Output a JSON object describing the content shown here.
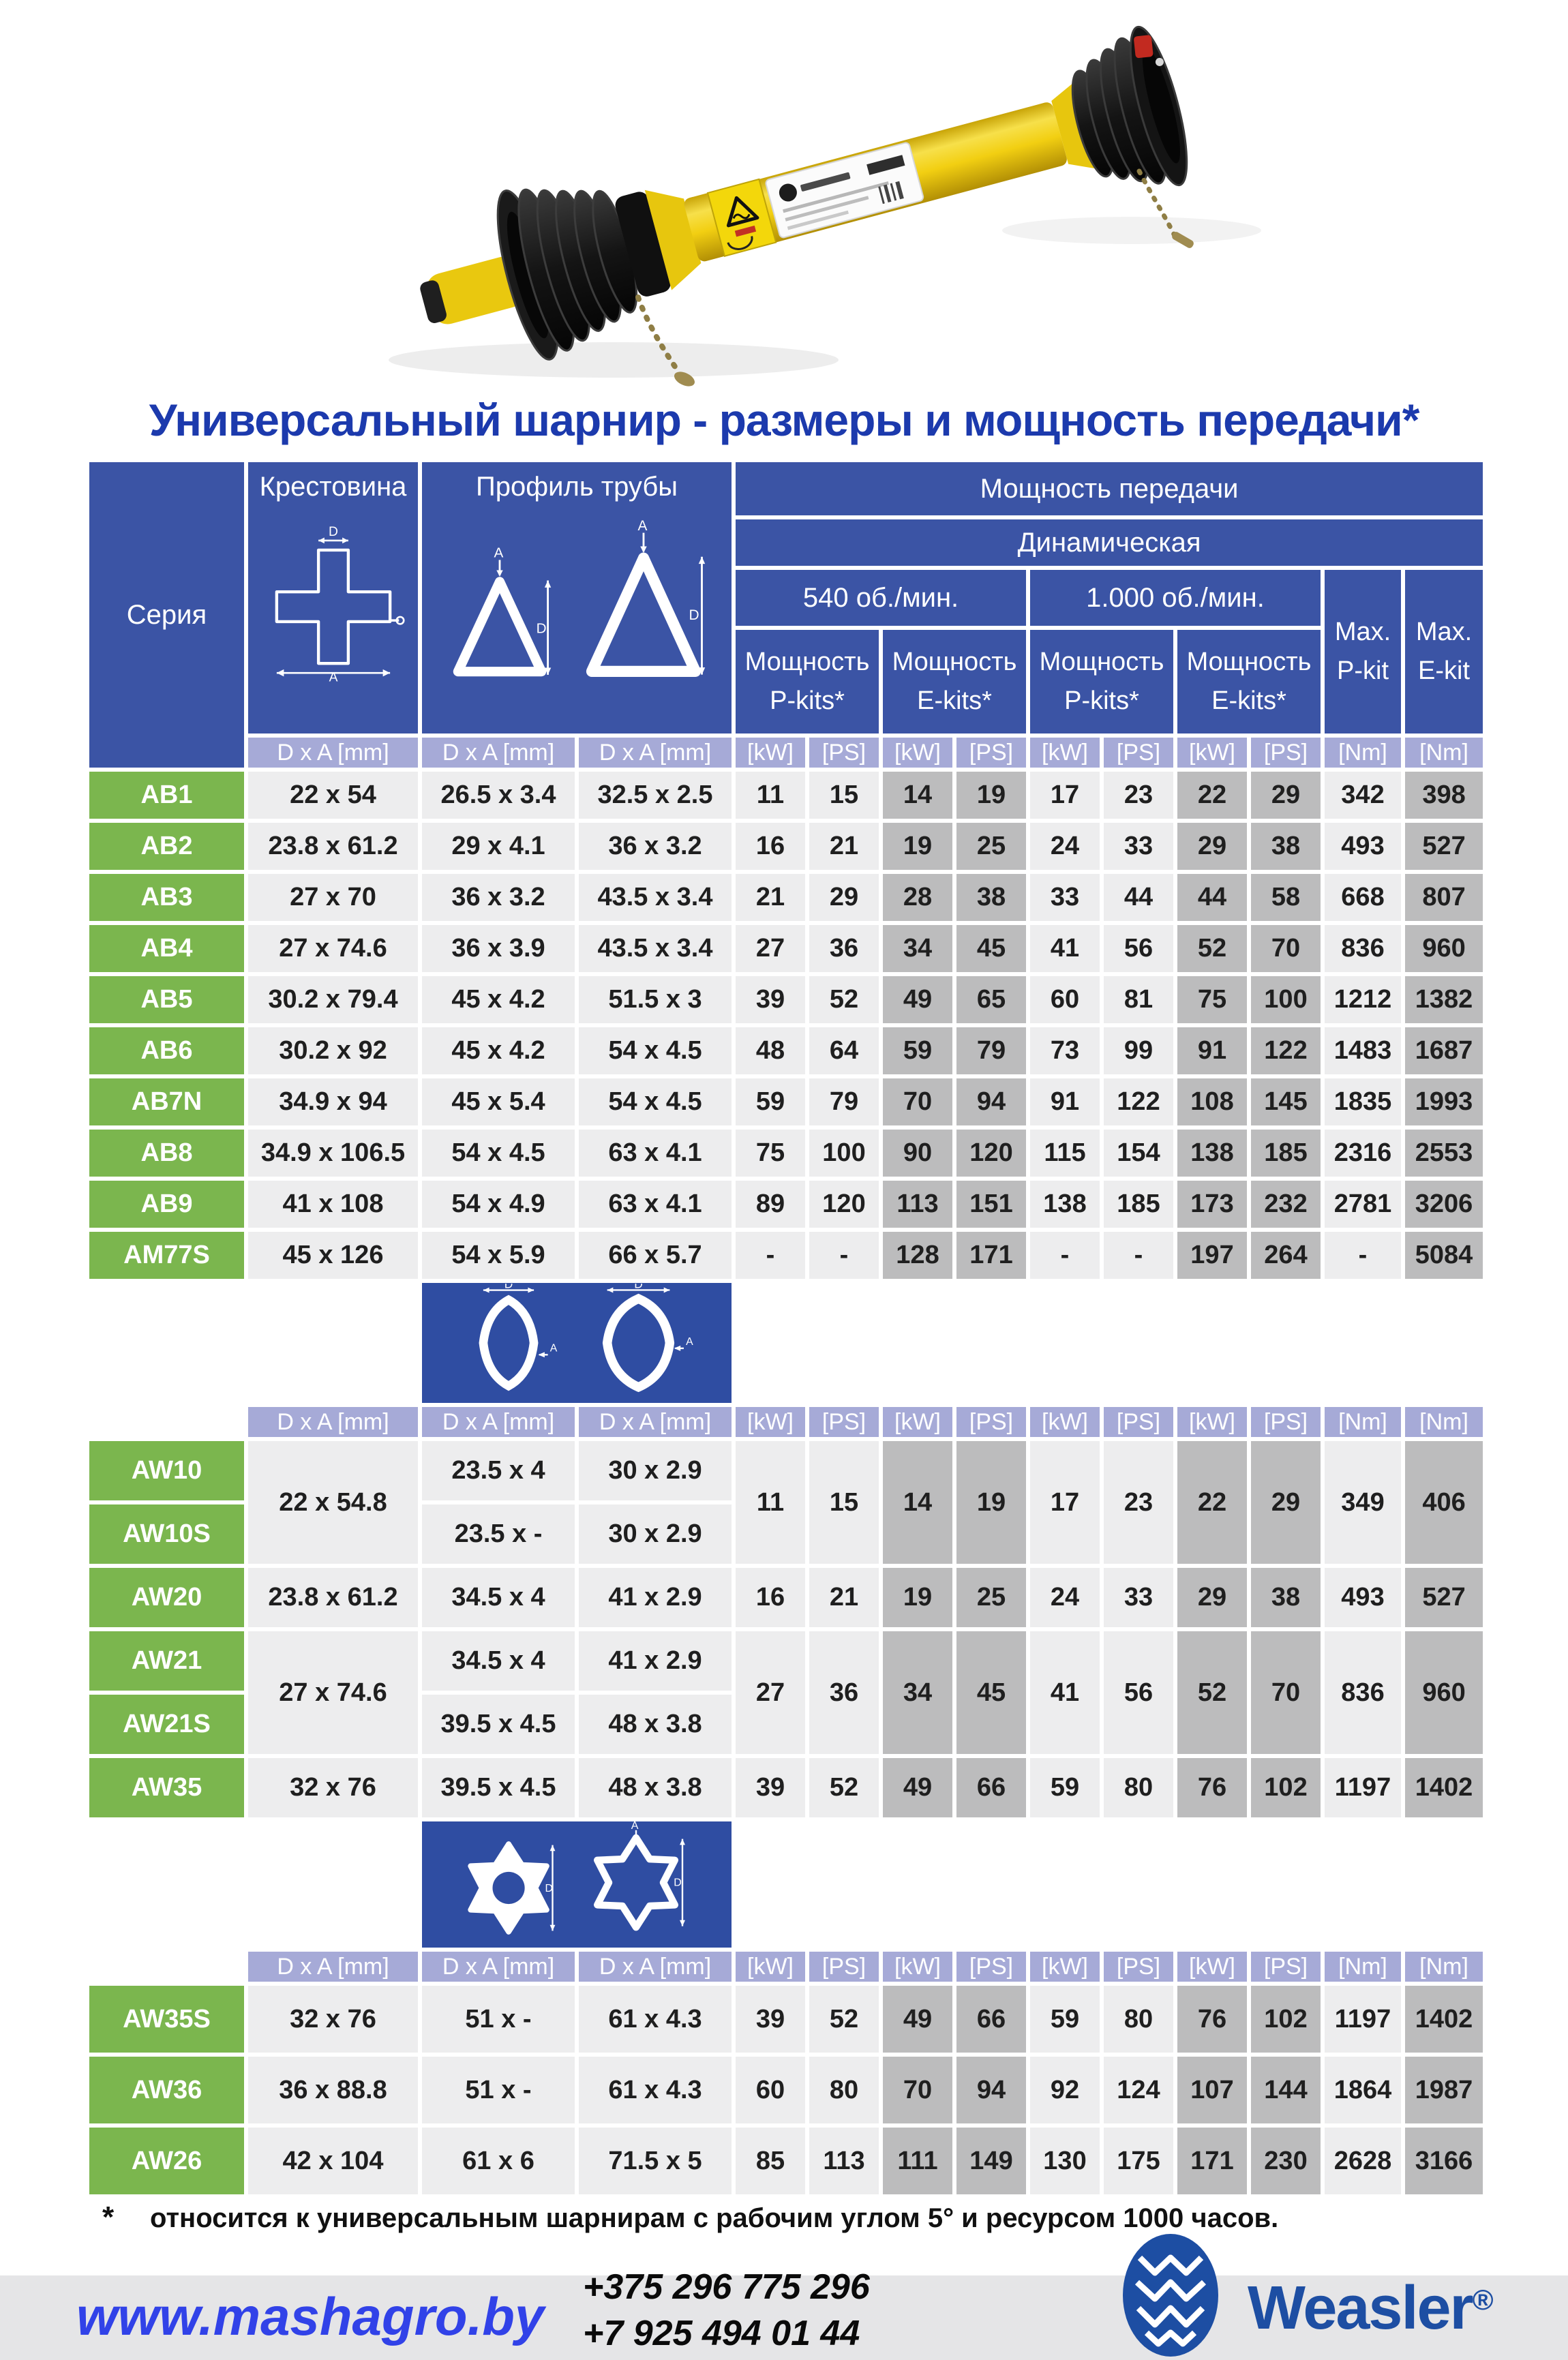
{
  "title": "Универсальный шарнир - размеры и мощность передачи*",
  "table": {
    "header": {
      "series": "Серия",
      "cross": "Крестовина",
      "tube_profile": "Профиль трубы",
      "power": "Мощность передачи",
      "dynamic": "Динамическая",
      "rpm540": "540 об./мин.",
      "rpm1000": "1.000 об./мин.",
      "p_kits": "Мощность P-kits*",
      "e_kits": "Мощность E-kits*",
      "max_p": "Max. P-kit",
      "max_e": "Max. E-kit"
    },
    "diagram_labels": {
      "d": "D",
      "a": "A"
    },
    "units_row": [
      "D x A [mm]",
      "D x A [mm]",
      "D x A [mm]",
      "[kW]",
      "[PS]",
      "[kW]",
      "[PS]",
      "[kW]",
      "[PS]",
      "[kW]",
      "[PS]",
      "[Nm]",
      "[Nm]"
    ],
    "sections": [
      {
        "name": "AB-series",
        "rows": [
          {
            "series": "AB1",
            "cells": [
              "22 x 54",
              "26.5 x 3.4",
              "32.5 x 2.5",
              "11",
              "15",
              "14",
              "19",
              "17",
              "23",
              "22",
              "29",
              "342",
              "398"
            ]
          },
          {
            "series": "AB2",
            "cells": [
              "23.8 x 61.2",
              "29 x 4.1",
              "36 x 3.2",
              "16",
              "21",
              "19",
              "25",
              "24",
              "33",
              "29",
              "38",
              "493",
              "527"
            ]
          },
          {
            "series": "AB3",
            "cells": [
              "27 x 70",
              "36 x 3.2",
              "43.5 x 3.4",
              "21",
              "29",
              "28",
              "38",
              "33",
              "44",
              "44",
              "58",
              "668",
              "807"
            ]
          },
          {
            "series": "AB4",
            "cells": [
              "27 x 74.6",
              "36 x 3.9",
              "43.5 x 3.4",
              "27",
              "36",
              "34",
              "45",
              "41",
              "56",
              "52",
              "70",
              "836",
              "960"
            ]
          },
          {
            "series": "AB5",
            "cells": [
              "30.2 x 79.4",
              "45 x 4.2",
              "51.5 x 3",
              "39",
              "52",
              "49",
              "65",
              "60",
              "81",
              "75",
              "100",
              "1212",
              "1382"
            ]
          },
          {
            "series": "AB6",
            "cells": [
              "30.2 x 92",
              "45 x 4.2",
              "54 x 4.5",
              "48",
              "64",
              "59",
              "79",
              "73",
              "99",
              "91",
              "122",
              "1483",
              "1687"
            ]
          },
          {
            "series": "AB7N",
            "cells": [
              "34.9 x 94",
              "45 x 5.4",
              "54 x 4.5",
              "59",
              "79",
              "70",
              "94",
              "91",
              "122",
              "108",
              "145",
              "1835",
              "1993"
            ]
          },
          {
            "series": "AB8",
            "cells": [
              "34.9 x 106.5",
              "54 x 4.5",
              "63 x 4.1",
              "75",
              "100",
              "90",
              "120",
              "115",
              "154",
              "138",
              "185",
              "2316",
              "2553"
            ]
          },
          {
            "series": "AB9",
            "cells": [
              "41 x 108",
              "54 x 4.9",
              "63 x 4.1",
              "89",
              "120",
              "113",
              "151",
              "138",
              "185",
              "173",
              "232",
              "2781",
              "3206"
            ]
          },
          {
            "series": "AM77S",
            "cells": [
              "45 x 126",
              "54 x 5.9",
              "66 x 5.7",
              "-",
              "-",
              "128",
              "171",
              "-",
              "-",
              "197",
              "264",
              "-",
              "5084"
            ]
          }
        ]
      },
      {
        "name": "AW-lemon-profile",
        "rows": [
          {
            "series": "AW10",
            "cells": [
              {
                "t": "22 x 54.8",
                "rs": 2
              },
              "23.5 x 4",
              "30 x 2.9",
              {
                "t": "11",
                "rs": 2
              },
              {
                "t": "15",
                "rs": 2
              },
              {
                "t": "14",
                "rs": 2
              },
              {
                "t": "19",
                "rs": 2
              },
              {
                "t": "17",
                "rs": 2
              },
              {
                "t": "23",
                "rs": 2
              },
              {
                "t": "22",
                "rs": 2
              },
              {
                "t": "29",
                "rs": 2
              },
              {
                "t": "349",
                "rs": 2
              },
              {
                "t": "406",
                "rs": 2
              }
            ]
          },
          {
            "series": "AW10S",
            "cells": [
              "23.5 x -",
              "30 x 2.9"
            ]
          },
          {
            "series": "AW20",
            "cells": [
              "23.8 x 61.2",
              "34.5 x 4",
              "41 x 2.9",
              "16",
              "21",
              "19",
              "25",
              "24",
              "33",
              "29",
              "38",
              "493",
              "527"
            ]
          },
          {
            "series": "AW21",
            "cells": [
              {
                "t": "27 x 74.6",
                "rs": 2
              },
              "34.5 x 4",
              "41 x 2.9",
              {
                "t": "27",
                "rs": 2
              },
              {
                "t": "36",
                "rs": 2
              },
              {
                "t": "34",
                "rs": 2
              },
              {
                "t": "45",
                "rs": 2
              },
              {
                "t": "41",
                "rs": 2
              },
              {
                "t": "56",
                "rs": 2
              },
              {
                "t": "52",
                "rs": 2
              },
              {
                "t": "70",
                "rs": 2
              },
              {
                "t": "836",
                "rs": 2
              },
              {
                "t": "960",
                "rs": 2
              }
            ]
          },
          {
            "series": "AW21S",
            "cells": [
              "39.5 x 4.5",
              "48 x 3.8"
            ]
          },
          {
            "series": "AW35",
            "cells": [
              "32 x 76",
              "39.5 x 4.5",
              "48 x 3.8",
              "39",
              "52",
              "49",
              "66",
              "59",
              "80",
              "76",
              "102",
              "1197",
              "1402"
            ]
          }
        ]
      },
      {
        "name": "AW-star-profile",
        "rows": [
          {
            "series": "AW35S",
            "cells": [
              "32 x 76",
              "51 x -",
              "61 x 4.3",
              "39",
              "52",
              "49",
              "66",
              "59",
              "80",
              "76",
              "102",
              "1197",
              "1402"
            ]
          },
          {
            "series": "AW36",
            "cells": [
              "36 x 88.8",
              "51 x -",
              "61 x 4.3",
              "60",
              "80",
              "70",
              "94",
              "92",
              "124",
              "107",
              "144",
              "1864",
              "1987"
            ]
          },
          {
            "series": "AW26",
            "cells": [
              "42 x 104",
              "61 x 6",
              "71.5 x 5",
              "85",
              "113",
              "111",
              "149",
              "130",
              "175",
              "171",
              "230",
              "2628",
              "3166"
            ]
          }
        ]
      }
    ]
  },
  "footnote": {
    "mark": "*",
    "text": "относится к универсальным шарнирам с рабочим углом 5° и ресурсом 1000 часов."
  },
  "footer": {
    "website": "www.mashagro.by",
    "phone1": "+375 296 775 296",
    "phone2": "+7 925 494 01 44",
    "brand": "Weasler",
    "reg_mark": "®"
  },
  "colors": {
    "header_blue": "#3b54a5",
    "diagram_blue": "#2f4da2",
    "series_green": "#7bb64e",
    "units_lavender": "#a6aad7",
    "cell_light": "#ededee",
    "cell_dark": "#bcbcbd",
    "title_blue": "#1c3aad",
    "link_blue": "#3142e8",
    "brand_blue": "#1d4ea3",
    "footer_gray": "#e5e5e7",
    "shaft_yellow": "#f2cf12"
  }
}
